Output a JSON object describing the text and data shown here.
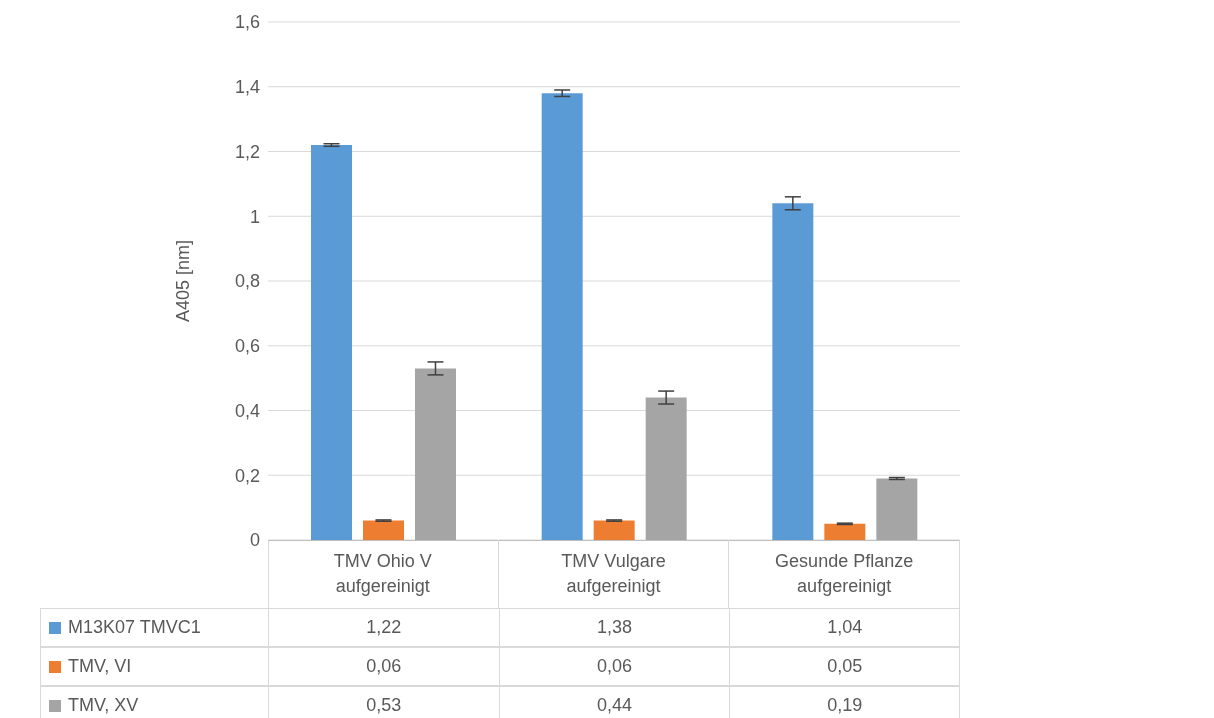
{
  "chart_data": {
    "type": "bar",
    "ylabel": "A405 [nm]",
    "categories": [
      "TMV Ohio V aufgereinigt",
      "TMV Vulgare aufgereinigt",
      "Gesunde Pflanze aufgereinigt"
    ],
    "series": [
      {
        "name": "M13K07 TMVC1",
        "color": "#5b9bd5",
        "values": [
          1.22,
          1.38,
          1.04
        ],
        "errors": [
          0.004,
          0.01,
          0.02
        ],
        "value_labels": [
          "1,22",
          "1,38",
          "1,04"
        ]
      },
      {
        "name": "TMV, VI",
        "color": "#ed7d31",
        "values": [
          0.06,
          0.06,
          0.05
        ],
        "errors": [
          0.002,
          0.002,
          0.002
        ],
        "value_labels": [
          "0,06",
          "0,06",
          "0,05"
        ]
      },
      {
        "name": "TMV, XV",
        "color": "#a5a5a5",
        "values": [
          0.53,
          0.44,
          0.19
        ],
        "errors": [
          0.02,
          0.02,
          0.003
        ],
        "value_labels": [
          "0,53",
          "0,44",
          "0,19"
        ]
      }
    ],
    "ylim": [
      0,
      1.6
    ],
    "yticks": [
      0,
      {
        "value": 0.2,
        "label": "0,2"
      },
      {
        "value": 0.4,
        "label": "0,4"
      },
      {
        "value": 0.6,
        "label": "0,6"
      },
      {
        "value": 0.8,
        "label": "0,8"
      },
      1,
      {
        "value": 1.2,
        "label": "1,2"
      },
      {
        "value": 1.4,
        "label": "1,4"
      },
      {
        "value": 1.6,
        "label": "1,6"
      }
    ],
    "grid": "y",
    "legend": "bottom"
  }
}
